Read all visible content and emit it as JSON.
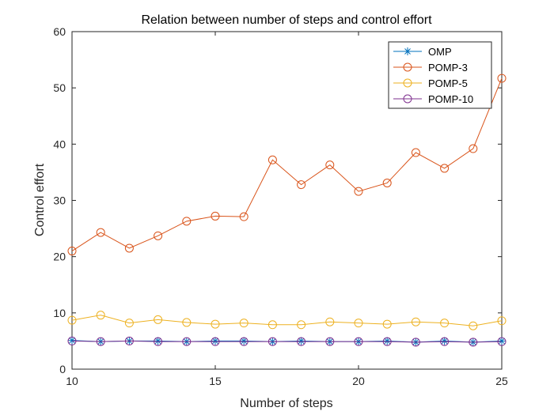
{
  "chart_data": {
    "type": "line",
    "title": "Relation between number of steps and control effort",
    "xlabel": "Number of steps",
    "ylabel": "Control effort",
    "xlim": [
      10,
      25
    ],
    "ylim": [
      0,
      60
    ],
    "xticks": [
      10,
      15,
      20,
      25
    ],
    "yticks": [
      0,
      10,
      20,
      30,
      40,
      50,
      60
    ],
    "grid": false,
    "legend_position": "top-right",
    "x": [
      10,
      11,
      12,
      13,
      14,
      15,
      16,
      17,
      18,
      19,
      20,
      21,
      22,
      23,
      24,
      25
    ],
    "series": [
      {
        "name": "OMP",
        "color": "#0072BD",
        "marker": "asterisk",
        "values": [
          5.1,
          4.9,
          5.0,
          5.0,
          4.9,
          5.0,
          5.0,
          4.9,
          5.0,
          4.9,
          4.9,
          5.0,
          4.8,
          5.0,
          4.8,
          5.0
        ]
      },
      {
        "name": "POMP-3",
        "color": "#D95319",
        "marker": "circle",
        "values": [
          21.0,
          24.3,
          21.5,
          23.7,
          26.3,
          27.2,
          27.1,
          37.2,
          32.8,
          36.3,
          31.6,
          33.1,
          38.5,
          35.7,
          39.2,
          51.7
        ]
      },
      {
        "name": "POMP-5",
        "color": "#EDB120",
        "marker": "circle",
        "values": [
          8.7,
          9.6,
          8.2,
          8.8,
          8.3,
          8.0,
          8.2,
          7.9,
          7.9,
          8.4,
          8.2,
          8.0,
          8.4,
          8.2,
          7.7,
          8.6
        ]
      },
      {
        "name": "POMP-10",
        "color": "#7E2F8E",
        "marker": "circle",
        "values": [
          5.0,
          4.9,
          5.0,
          4.9,
          4.9,
          4.9,
          4.9,
          4.9,
          4.9,
          4.9,
          4.9,
          4.9,
          4.8,
          4.9,
          4.8,
          4.9
        ]
      }
    ]
  }
}
